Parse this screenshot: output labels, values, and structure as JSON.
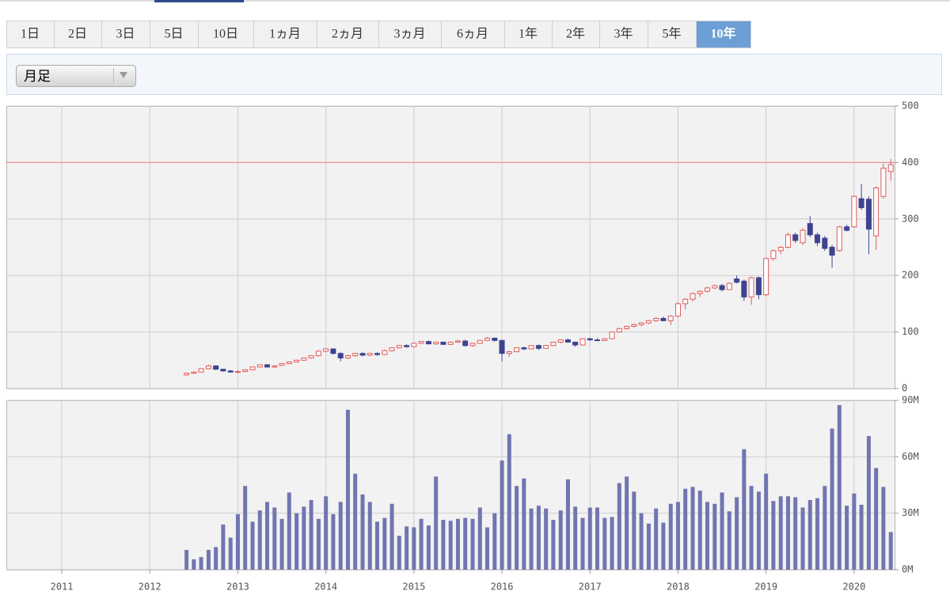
{
  "tabs": [
    "1日",
    "2日",
    "3日",
    "5日",
    "10日",
    "1ヵ月",
    "2ヵ月",
    "3ヵ月",
    "6ヵ月",
    "1年",
    "2年",
    "3年",
    "5年",
    "10年"
  ],
  "selected_tab": 13,
  "dropdown": "月足",
  "chart_data": [
    {
      "type": "candlestick",
      "x": [
        2012.417,
        2012.5,
        2012.583,
        2012.667,
        2012.75,
        2012.833,
        2012.917,
        2013,
        2013.083,
        2013.167,
        2013.25,
        2013.333,
        2013.417,
        2013.5,
        2013.583,
        2013.667,
        2013.75,
        2013.833,
        2013.917,
        2014,
        2014.083,
        2014.167,
        2014.25,
        2014.333,
        2014.417,
        2014.5,
        2014.583,
        2014.667,
        2014.75,
        2014.833,
        2014.917,
        2015,
        2015.083,
        2015.167,
        2015.25,
        2015.333,
        2015.417,
        2015.5,
        2015.583,
        2015.667,
        2015.75,
        2015.833,
        2015.917,
        2016,
        2016.083,
        2016.167,
        2016.25,
        2016.333,
        2016.417,
        2016.5,
        2016.583,
        2016.667,
        2016.75,
        2016.833,
        2016.917,
        2017,
        2017.083,
        2017.167,
        2017.25,
        2017.333,
        2017.417,
        2017.5,
        2017.583,
        2017.667,
        2017.75,
        2017.833,
        2017.917,
        2018,
        2018.083,
        2018.167,
        2018.25,
        2018.333,
        2018.417,
        2018.5,
        2018.583,
        2018.667,
        2018.75,
        2018.833,
        2018.917,
        2019,
        2019.083,
        2019.167,
        2019.25,
        2019.333,
        2019.417,
        2019.5,
        2019.583,
        2019.667,
        2019.75,
        2019.833,
        2019.917,
        2020,
        2020.083,
        2020.167,
        2020.25,
        2020.333,
        2020.417
      ],
      "open": [
        24,
        27,
        29,
        35,
        40,
        34,
        31,
        29,
        30,
        33,
        38,
        42,
        38,
        41,
        44,
        47,
        50,
        54,
        58,
        66,
        70,
        62,
        54,
        58,
        62,
        59,
        62,
        60,
        67,
        72,
        76,
        74,
        80,
        83,
        79,
        82,
        78,
        82,
        84,
        76,
        80,
        85,
        89,
        85,
        62,
        65,
        72,
        70,
        76,
        71,
        76,
        82,
        86,
        82,
        77,
        88,
        86,
        85,
        88,
        100,
        106,
        110,
        113,
        116,
        120,
        124,
        120,
        128,
        150,
        158,
        168,
        172,
        178,
        182,
        175,
        194,
        190,
        162,
        196,
        166,
        230,
        244,
        250,
        272,
        258,
        292,
        272,
        266,
        250,
        244,
        286,
        286,
        336,
        335,
        270,
        340,
        384
      ],
      "high": [
        28,
        30,
        36,
        42,
        41,
        35,
        33,
        32,
        34,
        39,
        43,
        43,
        41,
        45,
        48,
        51,
        55,
        59,
        68,
        72,
        71,
        64,
        60,
        63,
        64,
        63,
        64,
        69,
        73,
        77,
        78,
        81,
        84,
        85,
        83,
        83,
        83,
        86,
        86,
        81,
        86,
        91,
        90,
        86,
        67,
        73,
        74,
        77,
        78,
        77,
        83,
        87,
        88,
        83,
        89,
        90,
        89,
        89,
        101,
        107,
        111,
        115,
        117,
        121,
        126,
        127,
        130,
        152,
        160,
        170,
        174,
        180,
        184,
        185,
        188,
        200,
        193,
        198,
        198,
        232,
        246,
        252,
        276,
        276,
        284,
        305,
        276,
        270,
        254,
        288,
        290,
        342,
        362,
        340,
        358,
        398,
        406
      ],
      "low": [
        23,
        26,
        28,
        34,
        33,
        30,
        28,
        27,
        29,
        32,
        37,
        37,
        36,
        40,
        43,
        46,
        49,
        53,
        57,
        64,
        60,
        48,
        52,
        56,
        57,
        57,
        58,
        59,
        65,
        71,
        72,
        73,
        79,
        78,
        77,
        77,
        77,
        81,
        74,
        74,
        79,
        84,
        83,
        48,
        56,
        64,
        68,
        69,
        68,
        70,
        75,
        80,
        81,
        74,
        76,
        85,
        84,
        84,
        87,
        99,
        104,
        108,
        110,
        114,
        118,
        119,
        112,
        126,
        140,
        154,
        162,
        170,
        176,
        172,
        174,
        186,
        155,
        148,
        158,
        164,
        226,
        238,
        248,
        258,
        254,
        268,
        252,
        244,
        214,
        242,
        278,
        284,
        316,
        238,
        245,
        336,
        368
      ],
      "close": [
        27,
        29,
        35,
        40,
        34,
        31,
        29,
        30,
        33,
        38,
        42,
        38,
        40,
        44,
        47,
        50,
        54,
        58,
        66,
        70,
        62,
        54,
        58,
        62,
        59,
        62,
        60,
        67,
        72,
        76,
        74,
        80,
        83,
        79,
        82,
        78,
        82,
        84,
        76,
        80,
        85,
        89,
        85,
        62,
        65,
        72,
        70,
        76,
        71,
        76,
        82,
        86,
        82,
        77,
        88,
        86,
        85,
        88,
        100,
        106,
        110,
        113,
        116,
        120,
        124,
        120,
        128,
        150,
        158,
        168,
        172,
        178,
        182,
        175,
        186,
        188,
        162,
        196,
        166,
        230,
        244,
        250,
        272,
        262,
        280,
        272,
        258,
        248,
        236,
        286,
        280,
        340,
        320,
        282,
        355,
        390,
        396
      ],
      "up_color": "#e05a5a",
      "down_color": "#3d4390",
      "reference_line": {
        "value": 400,
        "color": "#f08080"
      },
      "xlim": [
        2010.37,
        2020.46
      ],
      "xticks": [
        2011,
        2012,
        2013,
        2014,
        2015,
        2016,
        2017,
        2018,
        2019,
        2020
      ],
      "ylim": [
        0,
        500
      ],
      "yticks": [
        0,
        100,
        200,
        300,
        400,
        500
      ],
      "grid": true
    },
    {
      "type": "bar",
      "x": [
        2012.417,
        2012.5,
        2012.583,
        2012.667,
        2012.75,
        2012.833,
        2012.917,
        2013,
        2013.083,
        2013.167,
        2013.25,
        2013.333,
        2013.417,
        2013.5,
        2013.583,
        2013.667,
        2013.75,
        2013.833,
        2013.917,
        2014,
        2014.083,
        2014.167,
        2014.25,
        2014.333,
        2014.417,
        2014.5,
        2014.583,
        2014.667,
        2014.75,
        2014.833,
        2014.917,
        2015,
        2015.083,
        2015.167,
        2015.25,
        2015.333,
        2015.417,
        2015.5,
        2015.583,
        2015.667,
        2015.75,
        2015.833,
        2015.917,
        2016,
        2016.083,
        2016.167,
        2016.25,
        2016.333,
        2016.417,
        2016.5,
        2016.583,
        2016.667,
        2016.75,
        2016.833,
        2016.917,
        2017,
        2017.083,
        2017.167,
        2017.25,
        2017.333,
        2017.417,
        2017.5,
        2017.583,
        2017.667,
        2017.75,
        2017.833,
        2017.917,
        2018,
        2018.083,
        2018.167,
        2018.25,
        2018.333,
        2018.417,
        2018.5,
        2018.583,
        2018.667,
        2018.75,
        2018.833,
        2018.917,
        2019,
        2019.083,
        2019.167,
        2019.25,
        2019.333,
        2019.417,
        2019.5,
        2019.583,
        2019.667,
        2019.75,
        2019.833,
        2019.917,
        2020,
        2020.083,
        2020.167,
        2020.25,
        2020.333,
        2020.417
      ],
      "values": [
        10500000,
        5500000,
        6700000,
        10500000,
        12000000,
        24000000,
        17000000,
        29500000,
        44500000,
        25500000,
        31500000,
        36000000,
        33000000,
        27000000,
        41000000,
        30000000,
        33500000,
        37000000,
        27000000,
        39000000,
        29500000,
        36000000,
        85000000,
        51000000,
        40000000,
        36000000,
        25500000,
        27500000,
        35000000,
        18000000,
        23000000,
        22500000,
        27000000,
        23500000,
        49500000,
        26500000,
        26000000,
        27000000,
        27500000,
        27000000,
        33000000,
        22500000,
        30000000,
        58000000,
        72000000,
        44500000,
        48500000,
        32500000,
        34000000,
        32500000,
        26500000,
        31500000,
        48000000,
        33500000,
        27500000,
        33000000,
        33000000,
        27500000,
        28000000,
        46000000,
        49500000,
        41500000,
        30000000,
        24500000,
        32500000,
        25000000,
        35000000,
        36000000,
        43000000,
        44000000,
        42000000,
        36000000,
        35000000,
        41000000,
        31000000,
        38500000,
        64000000,
        44500000,
        41500000,
        51000000,
        36500000,
        39000000,
        39000000,
        38500000,
        33000000,
        37000000,
        38000000,
        44500000,
        75000000,
        87500000,
        34000000,
        40500000,
        34500000,
        71000000,
        54000000,
        44000000,
        20000000
      ],
      "color": "#7175b0",
      "xlim": [
        2010.37,
        2020.46
      ],
      "xticks": [
        2011,
        2012,
        2013,
        2014,
        2015,
        2016,
        2017,
        2018,
        2019,
        2020
      ],
      "ylim": [
        0,
        90000000
      ],
      "yticks": [
        {
          "value": 0,
          "label": "0M"
        },
        {
          "value": 30000000,
          "label": "30M"
        },
        {
          "value": 60000000,
          "label": "60M"
        },
        {
          "value": 90000000,
          "label": "90M"
        }
      ],
      "grid": true
    }
  ]
}
